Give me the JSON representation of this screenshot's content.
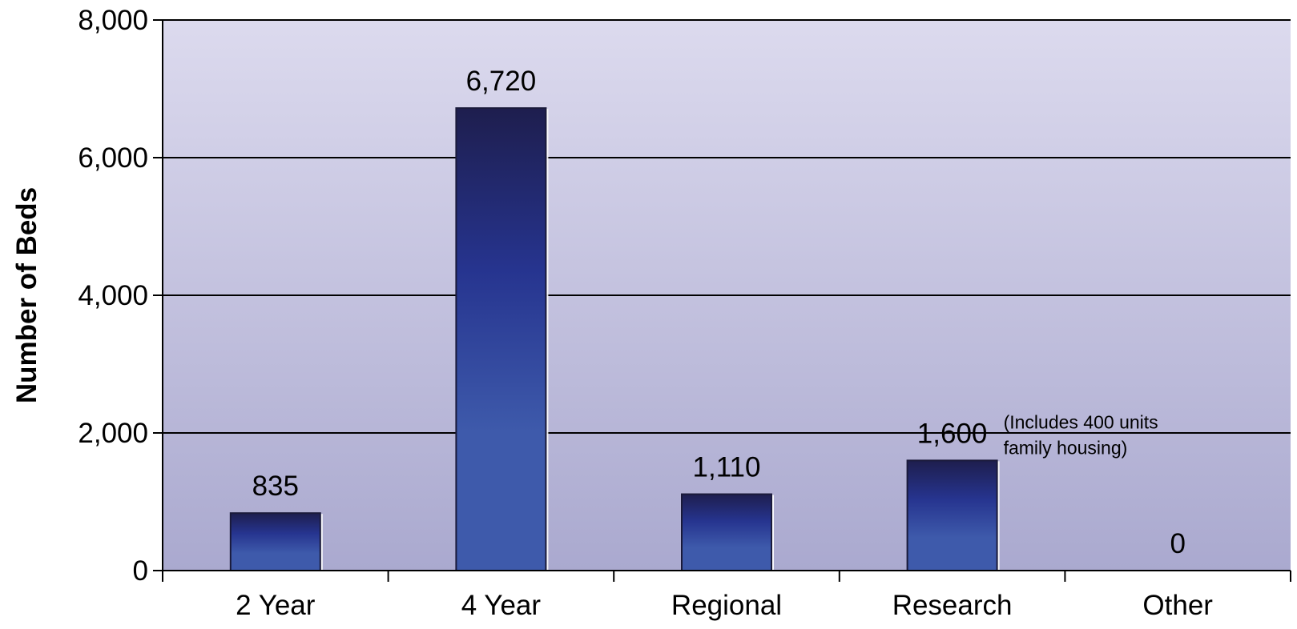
{
  "chart_data": {
    "type": "bar",
    "title": "",
    "xlabel": "",
    "ylabel": "Number of Beds",
    "categories": [
      "2 Year",
      "4 Year",
      "Regional",
      "Research",
      "Other"
    ],
    "values": [
      835,
      6720,
      1110,
      1600,
      0
    ],
    "data_labels": [
      "835",
      "6,720",
      "1,110",
      "1,600",
      "0"
    ],
    "ylim": [
      0,
      8000
    ],
    "yticks": [
      0,
      2000,
      4000,
      6000,
      8000
    ],
    "ytick_labels": [
      "0",
      "2,000",
      "4,000",
      "6,000",
      "8,000"
    ],
    "grid": true,
    "legend": "none",
    "annotations": [
      {
        "category": "Research",
        "lines": [
          "(Includes 400 units",
          "family housing)"
        ]
      }
    ],
    "colors": {
      "plot_bg_top": "#dcdaee",
      "plot_bg_bottom": "#aaa9cf",
      "bar_top": "#1e1e4e",
      "bar_mid": "#26348f",
      "bar_bottom": "#3e5aab",
      "gridline": "#000000"
    }
  }
}
